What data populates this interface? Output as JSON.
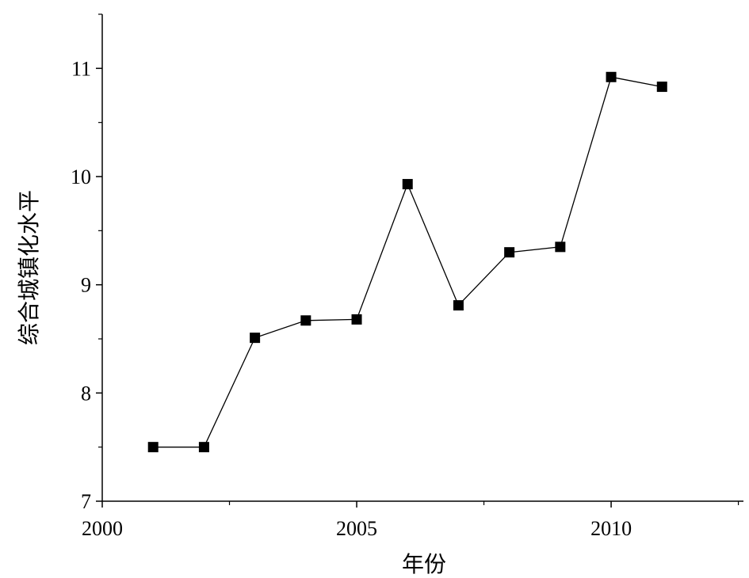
{
  "chart_data": {
    "type": "line",
    "title": "",
    "xlabel": "年份",
    "ylabel": "综合城镇化水平",
    "xlim": [
      2000,
      2012.6
    ],
    "ylim": [
      7,
      11.5
    ],
    "xticks": [
      2000,
      2005,
      2010
    ],
    "xticks_minor": [
      2002.5,
      2007.5,
      2012.5
    ],
    "yticks": [
      7,
      8,
      9,
      10,
      11
    ],
    "yticks_minor": [
      7.5,
      8.5,
      9.5,
      10.5,
      11.5
    ],
    "grid": false,
    "legend": "none",
    "marker": "square",
    "color": "#000000",
    "series": [
      {
        "x": [
          2001,
          2002,
          2003,
          2004,
          2005,
          2006,
          2007,
          2008,
          2009,
          2010,
          2011
        ],
        "values": [
          7.5,
          7.5,
          8.51,
          8.67,
          8.68,
          9.93,
          8.81,
          9.3,
          9.35,
          10.92,
          10.83
        ]
      }
    ]
  }
}
